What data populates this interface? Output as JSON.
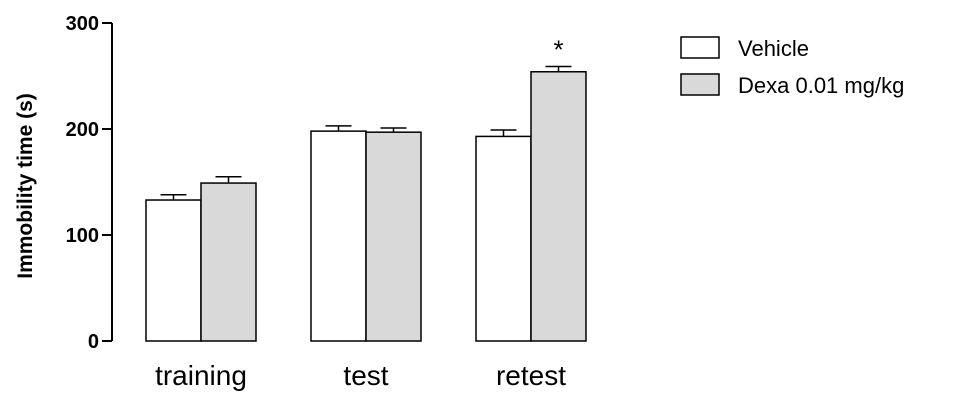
{
  "chart_data": {
    "type": "bar",
    "categories": [
      "training",
      "test",
      "retest"
    ],
    "ylabel": "Immobility time (s)",
    "xlabel": "",
    "ylim": [
      0,
      300
    ],
    "yticks": [
      0,
      100,
      200,
      300
    ],
    "series": [
      {
        "name": "Vehicle",
        "color": "#ffffff",
        "values": [
          133,
          198,
          193
        ],
        "errors": [
          5,
          5,
          6
        ]
      },
      {
        "name": "Dexa 0.01 mg/kg",
        "color": "#d9d9d9",
        "values": [
          149,
          197,
          254
        ],
        "errors": [
          6,
          4,
          5
        ]
      }
    ],
    "annotations": [
      {
        "text": "*",
        "category": "retest",
        "series": "Dexa 0.01 mg/kg"
      }
    ],
    "legend_position": "top-right",
    "grid": false
  }
}
